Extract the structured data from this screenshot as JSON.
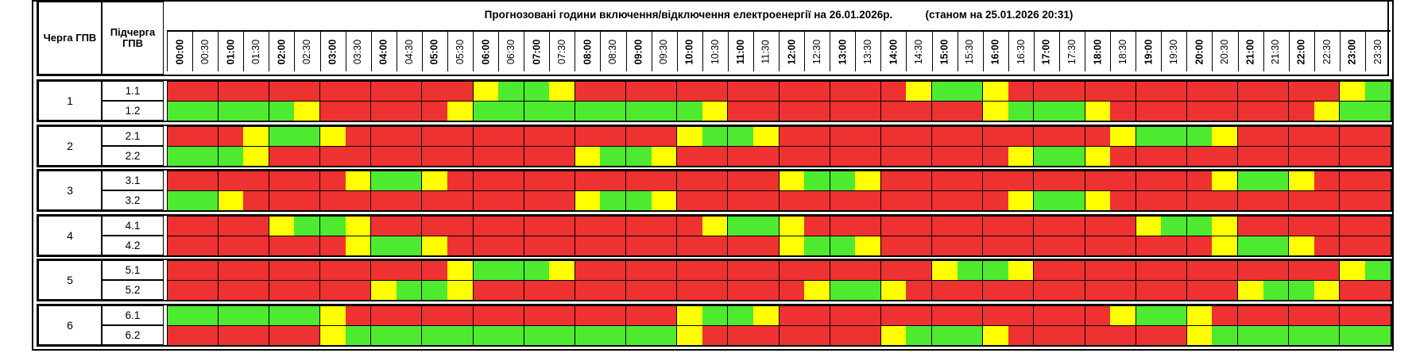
{
  "header": {
    "queue_label": "Черга ГПВ",
    "subqueue_label": "Підчерга ГПВ",
    "title": "Прогнозовані години включення/відключення електроенергії на 26.01.2026р.",
    "as_of": "(станом на 25.01.2026 20:31)"
  },
  "times": [
    "00:00",
    "00:30",
    "01:00",
    "01:30",
    "02:00",
    "02:30",
    "03:00",
    "03:30",
    "04:00",
    "04:30",
    "05:00",
    "05:30",
    "06:00",
    "06:30",
    "07:00",
    "07:30",
    "08:00",
    "08:30",
    "09:00",
    "09:30",
    "10:00",
    "10:30",
    "11:00",
    "11:30",
    "12:00",
    "12:30",
    "13:00",
    "13:30",
    "14:00",
    "14:30",
    "15:00",
    "15:30",
    "16:00",
    "16:30",
    "17:00",
    "17:30",
    "18:00",
    "18:30",
    "19:00",
    "19:30",
    "20:00",
    "20:30",
    "21:00",
    "21:30",
    "22:00",
    "22:30",
    "23:00",
    "23:30"
  ],
  "legend_colors": {
    "R": "#ee3131",
    "G": "#4eea30",
    "Y": "#ffff00"
  },
  "groups": [
    {
      "label": "1",
      "subgroups": [
        {
          "label": "1.1",
          "slots": "RRRRRRRRRRRRYGGYRRRRRRRRRRRRRYGGYRRRRRRRRRRRRRYG"
        },
        {
          "label": "1.2",
          "slots": "GGGGGYRRRRRYGGGGGGGGGYRRRRRRRRRRYGGGYRRRRRRRRYGG"
        }
      ]
    },
    {
      "label": "2",
      "subgroups": [
        {
          "label": "2.1",
          "slots": "RRRYGGYRRRRRRRRRRRRRYGGYRRRRRRRRRRRRRYGGGYRRRRRR"
        },
        {
          "label": "2.2",
          "slots": "GGGYRRRRRRRRRRRRYGGYRRRRRRRRRRRRRYGGYRRRRRRRRRRR"
        }
      ]
    },
    {
      "label": "3",
      "subgroups": [
        {
          "label": "3.1",
          "slots": "RRRRRRRYGGYRRRRRRRRRRRRRYGGYRRRRRRRRRRRRRYGGYRRR"
        },
        {
          "label": "3.2",
          "slots": "GGYRRRRRRRRRRRRRYGGYRRRRRRRRRRRRRYGGYRRRRRRRRRRR"
        }
      ]
    },
    {
      "label": "4",
      "subgroups": [
        {
          "label": "4.1",
          "slots": "RRRRYGGYRRRRRRRRRRRRRYGGYRRRRRRRRRRRRRYGGYRRRRRR"
        },
        {
          "label": "4.2",
          "slots": "RRRRRRRYGGYRRRRRRRRRRRRRYGGYRRRRRRRRRRRRRYGGYRRR"
        }
      ]
    },
    {
      "label": "5",
      "subgroups": [
        {
          "label": "5.1",
          "slots": "RRRRRRRRRRRYGGGYRRRRRRRRRRRRRRYGGYRRRRRRRRRRRRYG"
        },
        {
          "label": "5.2",
          "slots": "RRRRRRRRYGGYRRRRRRRRRRRRRYGGYRRRRRRRRRRRRRYGGYRR"
        }
      ]
    },
    {
      "label": "6",
      "subgroups": [
        {
          "label": "6.1",
          "slots": "GGGGGGYRRRRRRRRRRRRRYGGYRRRRRRRRRRRRRYGGYRRRRRRR"
        },
        {
          "label": "6.2",
          "slots": "RRRRRRYGGGGGGGGGGGGGYRRRRRRRYGGGYRRRRRRRYGGGGGGG"
        }
      ]
    }
  ]
}
